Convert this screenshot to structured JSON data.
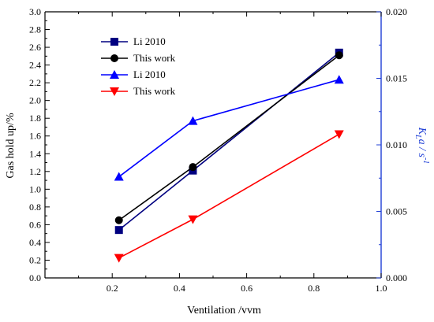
{
  "chart_data": {
    "type": "line",
    "x_axis": {
      "label": "Ventilation /vvm",
      "range": [
        0.0,
        1.0
      ],
      "ticks": [
        0.2,
        0.4,
        0.6,
        0.8,
        1.0
      ],
      "tick_labels": [
        "0.2",
        "0.4",
        "0.6",
        "0.8",
        "1.0"
      ]
    },
    "y_axis_left": {
      "label": "Gas hold up/%",
      "range": [
        0.0,
        3.0
      ],
      "ticks": [
        0.0,
        0.2,
        0.4,
        0.6,
        0.8,
        1.0,
        1.2,
        1.4,
        1.6,
        1.8,
        2.0,
        2.2,
        2.4,
        2.6,
        2.8,
        3.0
      ],
      "tick_labels": [
        "0.0",
        "0.2",
        "0.4",
        "0.6",
        "0.8",
        "1.0",
        "1.2",
        "1.4",
        "1.6",
        "1.8",
        "2.0",
        "2.2",
        "2.4",
        "2.6",
        "2.8",
        "3.0"
      ]
    },
    "y_axis_right": {
      "label_main": "K",
      "label_sub": "L",
      "label_rest": "a / s",
      "label_sup": "-1",
      "range": [
        0.0,
        0.02
      ],
      "ticks": [
        0.0,
        0.005,
        0.01,
        0.015,
        0.02
      ],
      "tick_labels": [
        "0.000",
        "0.005",
        "0.010",
        "0.015",
        "0.020"
      ],
      "color": "#1f3fd6"
    },
    "grid": false,
    "legend_position": "top-left",
    "series": [
      {
        "name": "Li 2010",
        "axis": "left",
        "color": "#000080",
        "marker": "square",
        "x": [
          0.22,
          0.44,
          0.875
        ],
        "y": [
          0.54,
          1.21,
          2.54
        ]
      },
      {
        "name": "This work",
        "axis": "left",
        "color": "#000000",
        "marker": "circle",
        "x": [
          0.22,
          0.44,
          0.875
        ],
        "y": [
          0.65,
          1.25,
          2.51
        ]
      },
      {
        "name": "Li 2010",
        "axis": "right",
        "color": "#0000ff",
        "marker": "triangle-up",
        "x": [
          0.22,
          0.44,
          0.875
        ],
        "y": [
          0.0076,
          0.0118,
          0.0149
        ]
      },
      {
        "name": "This work",
        "axis": "right",
        "color": "#ff0000",
        "marker": "triangle-down",
        "x": [
          0.22,
          0.44,
          0.875
        ],
        "y": [
          0.0015,
          0.0044,
          0.0108
        ]
      }
    ]
  }
}
